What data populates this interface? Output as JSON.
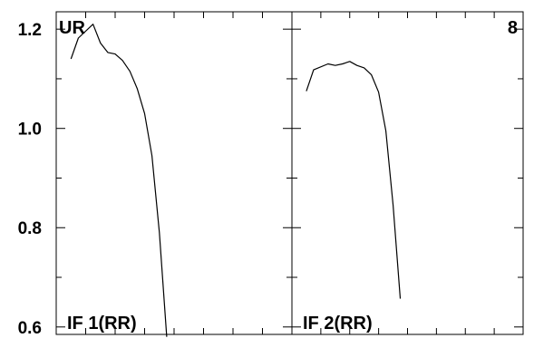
{
  "chart_data": {
    "type": "line",
    "grid": false,
    "ylim": [
      0.585,
      1.235
    ],
    "y_tick_labels": [
      "0.6",
      "0.8",
      "1.0",
      "1.2"
    ],
    "y_major_ticks": [
      0.6,
      0.8,
      1.0,
      1.2
    ],
    "y_minor_ticks": [
      0.7,
      0.9,
      1.1
    ],
    "corner_label_left": "UR",
    "corner_label_right": "8",
    "panels": [
      {
        "label": "IF 1(RR)",
        "xlim": [
          0,
          16
        ],
        "x_ticks": [
          2,
          4,
          6,
          8,
          10,
          12,
          14,
          16
        ],
        "series": [
          {
            "x": [
              1,
              1.5,
              2.5,
              3,
              3.5,
              4,
              4.5,
              5,
              5.5,
              6,
              6.5,
              7,
              7.5,
              8
            ],
            "values": [
              1.14,
              1.182,
              1.21,
              1.172,
              1.153,
              1.15,
              1.137,
              1.115,
              1.08,
              1.03,
              0.945,
              0.79,
              0.58,
              null
            ]
          }
        ]
      },
      {
        "label": "IF 2(RR)",
        "xlim": [
          0,
          16
        ],
        "x_ticks": [
          2,
          4,
          6,
          8,
          10,
          12,
          14,
          16
        ],
        "series": [
          {
            "x": [
              1,
              1.5,
              2.5,
              3,
              3.5,
              4,
              4.5,
              5,
              5.5,
              6,
              6.5,
              7,
              7.5,
              8
            ],
            "values": [
              1.075,
              1.118,
              1.13,
              1.127,
              1.13,
              1.135,
              1.127,
              1.122,
              1.108,
              1.073,
              0.995,
              0.845,
              0.657,
              null
            ]
          }
        ]
      }
    ]
  }
}
